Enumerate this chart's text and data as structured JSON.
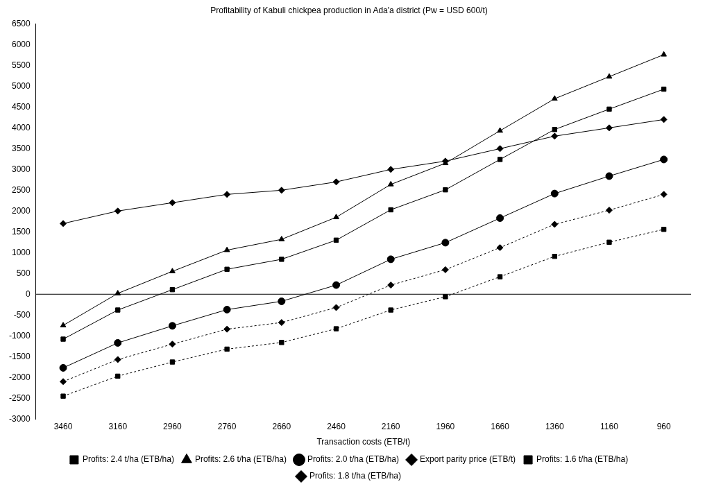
{
  "chart_data": {
    "type": "line",
    "title": "Profitability of Kabuli chickpea production in Ada'a district (Pw = USD 600/t)",
    "xlabel": "Transaction costs (ETB/t)",
    "categories": [
      "3460",
      "3160",
      "2960",
      "2760",
      "2660",
      "2460",
      "2160",
      "1960",
      "1660",
      "1360",
      "1160",
      "960"
    ],
    "ylim": [
      -3000,
      6500
    ],
    "yticks": [
      -3000,
      -2500,
      -2000,
      -1500,
      -1000,
      -500,
      0,
      500,
      1000,
      1500,
      2000,
      2500,
      3000,
      3500,
      4000,
      4500,
      5000,
      5500,
      6000,
      6500
    ],
    "grid": false,
    "legend": "bottom",
    "ref_lines": [
      {
        "axis": "y",
        "value": 0,
        "color": "#000000",
        "line_style": "solid"
      }
    ],
    "series": [
      {
        "name": "Profits: 2.4 t/ha (ETB/ha)",
        "color": "#000000",
        "marker": "square",
        "line_style": "solid",
        "values": [
          -1080,
          -380,
          110,
          600,
          840,
          1300,
          2030,
          2510,
          3240,
          3960,
          4450,
          4930
        ]
      },
      {
        "name": "Profits: 2.6 t/ha (ETB/ha)",
        "color": "#000000",
        "marker": "triangle",
        "line_style": "solid",
        "values": [
          -750,
          20,
          550,
          1060,
          1320,
          1850,
          2640,
          3150,
          3930,
          4700,
          5230,
          5760
        ]
      },
      {
        "name": "Profits: 2.0 t/ha (ETB/ha)",
        "color": "#000000",
        "marker": "circle",
        "line_style": "solid",
        "values": [
          -1770,
          -1170,
          -760,
          -370,
          -170,
          220,
          840,
          1240,
          1830,
          2420,
          2840,
          3240
        ]
      },
      {
        "name": "Export parity price (ETB/t)",
        "color": "#000000",
        "marker": "diamond",
        "line_style": "solid",
        "values": [
          1700,
          2000,
          2200,
          2400,
          2500,
          2700,
          3000,
          3200,
          3500,
          3800,
          4000,
          4200
        ]
      },
      {
        "name": "Profits: 1.6 t/ha (ETB/ha)",
        "color": "#000000",
        "marker": "square",
        "line_style": "dotted",
        "values": [
          -2450,
          -1970,
          -1630,
          -1320,
          -1160,
          -830,
          -380,
          -60,
          420,
          910,
          1250,
          1560
        ]
      },
      {
        "name": "Profits: 1.8 t/ha (ETB/ha)",
        "color": "#000000",
        "marker": "diamond",
        "line_style": "dotted",
        "values": [
          -2100,
          -1570,
          -1200,
          -840,
          -680,
          -320,
          220,
          590,
          1120,
          1680,
          2020,
          2400
        ]
      }
    ]
  }
}
